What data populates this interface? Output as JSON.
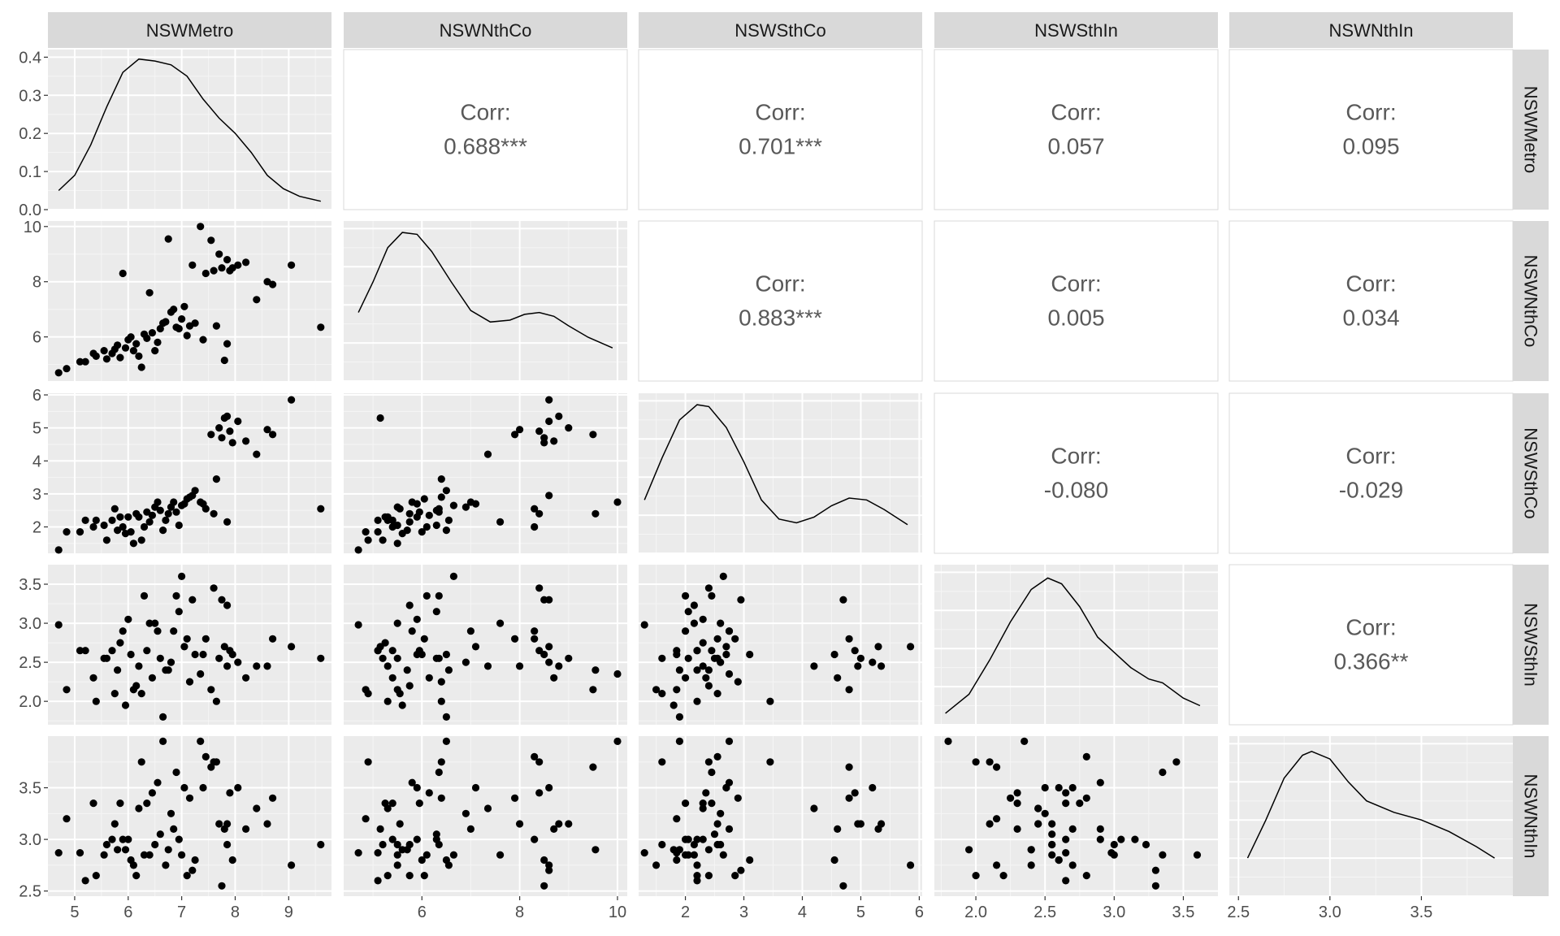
{
  "chart_data": {
    "type": "scatter",
    "title": "",
    "variables": [
      "NSWMetro",
      "NSWNthCo",
      "NSWSthCo",
      "NSWSthIn",
      "NSWNthIn"
    ],
    "axis_ranges": {
      "NSWMetro": [
        4.5,
        9.8
      ],
      "NSWNthCo": [
        4.4,
        10.2
      ],
      "NSWSthCo": [
        1.2,
        6.05
      ],
      "NSWSthIn": [
        1.7,
        3.75
      ],
      "NSWNthIn": [
        2.45,
        4.0
      ]
    },
    "x_ticks": {
      "NSWMetro": [
        "5",
        "6",
        "7",
        "8",
        "9"
      ],
      "NSWNthCo": [
        "6",
        "8",
        "10"
      ],
      "NSWSthCo": [
        "2",
        "3",
        "4",
        "5",
        "6"
      ],
      "NSWSthIn": [
        "2.0",
        "2.5",
        "3.0",
        "3.5"
      ],
      "NSWNthIn": [
        "2.5",
        "3.0",
        "3.5"
      ]
    },
    "y_ticks": {
      "NSWMetro": [
        "0.0",
        "0.1",
        "0.2",
        "0.3",
        "0.4"
      ],
      "NSWNthCo": [
        "6",
        "8",
        "10"
      ],
      "NSWSthCo": [
        "2",
        "3",
        "4",
        "5",
        "6"
      ],
      "NSWSthIn": [
        "2.0",
        "2.5",
        "3.0",
        "3.5"
      ],
      "NSWNthIn": [
        "2.5",
        "3.0",
        "3.5"
      ]
    },
    "density_ymax": 0.42,
    "correlations": [
      {
        "row": "NSWMetro",
        "col": "NSWNthCo",
        "label": "Corr:",
        "value": "0.688***"
      },
      {
        "row": "NSWMetro",
        "col": "NSWSthCo",
        "label": "Corr:",
        "value": "0.701***"
      },
      {
        "row": "NSWMetro",
        "col": "NSWSthIn",
        "label": "Corr:",
        "value": "0.057"
      },
      {
        "row": "NSWMetro",
        "col": "NSWNthIn",
        "label": "Corr:",
        "value": "0.095"
      },
      {
        "row": "NSWNthCo",
        "col": "NSWSthCo",
        "label": "Corr:",
        "value": "0.883***"
      },
      {
        "row": "NSWNthCo",
        "col": "NSWSthIn",
        "label": "Corr:",
        "value": "0.005"
      },
      {
        "row": "NSWNthCo",
        "col": "NSWNthIn",
        "label": "Corr:",
        "value": "0.034"
      },
      {
        "row": "NSWSthCo",
        "col": "NSWSthIn",
        "label": "Corr:",
        "value": "-0.080"
      },
      {
        "row": "NSWSthCo",
        "col": "NSWNthIn",
        "label": "Corr:",
        "value": "-0.029"
      },
      {
        "row": "NSWSthIn",
        "col": "NSWNthIn",
        "label": "Corr:",
        "value": "0.366**"
      }
    ],
    "densities": {
      "NSWMetro": [
        [
          4.7,
          0.05
        ],
        [
          5.0,
          0.09
        ],
        [
          5.3,
          0.17
        ],
        [
          5.6,
          0.27
        ],
        [
          5.9,
          0.36
        ],
        [
          6.2,
          0.395
        ],
        [
          6.5,
          0.39
        ],
        [
          6.8,
          0.38
        ],
        [
          7.1,
          0.35
        ],
        [
          7.4,
          0.29
        ],
        [
          7.7,
          0.24
        ],
        [
          8.0,
          0.2
        ],
        [
          8.3,
          0.15
        ],
        [
          8.6,
          0.09
        ],
        [
          8.9,
          0.055
        ],
        [
          9.2,
          0.035
        ],
        [
          9.6,
          0.022
        ]
      ],
      "NSWNthCo": [
        [
          4.7,
          0.18
        ],
        [
          5.0,
          0.26
        ],
        [
          5.3,
          0.35
        ],
        [
          5.6,
          0.39
        ],
        [
          5.9,
          0.385
        ],
        [
          6.2,
          0.34
        ],
        [
          6.6,
          0.26
        ],
        [
          7.0,
          0.185
        ],
        [
          7.4,
          0.155
        ],
        [
          7.8,
          0.16
        ],
        [
          8.1,
          0.175
        ],
        [
          8.4,
          0.18
        ],
        [
          8.7,
          0.17
        ],
        [
          9.0,
          0.145
        ],
        [
          9.4,
          0.115
        ],
        [
          9.9,
          0.087
        ]
      ],
      "NSWSthCo": [
        [
          1.3,
          0.14
        ],
        [
          1.6,
          0.25
        ],
        [
          1.9,
          0.35
        ],
        [
          2.2,
          0.39
        ],
        [
          2.4,
          0.385
        ],
        [
          2.7,
          0.33
        ],
        [
          3.0,
          0.24
        ],
        [
          3.3,
          0.14
        ],
        [
          3.6,
          0.09
        ],
        [
          3.9,
          0.08
        ],
        [
          4.2,
          0.095
        ],
        [
          4.5,
          0.125
        ],
        [
          4.8,
          0.145
        ],
        [
          5.1,
          0.14
        ],
        [
          5.4,
          0.115
        ],
        [
          5.8,
          0.075
        ]
      ],
      "NSWSthIn": [
        [
          1.78,
          0.03
        ],
        [
          1.95,
          0.08
        ],
        [
          2.1,
          0.17
        ],
        [
          2.25,
          0.27
        ],
        [
          2.4,
          0.355
        ],
        [
          2.52,
          0.385
        ],
        [
          2.62,
          0.37
        ],
        [
          2.75,
          0.31
        ],
        [
          2.88,
          0.23
        ],
        [
          3.0,
          0.19
        ],
        [
          3.12,
          0.15
        ],
        [
          3.25,
          0.12
        ],
        [
          3.35,
          0.11
        ],
        [
          3.5,
          0.07
        ],
        [
          3.62,
          0.05
        ]
      ],
      "NSWNthIn": [
        [
          2.55,
          0.1
        ],
        [
          2.65,
          0.2
        ],
        [
          2.75,
          0.31
        ],
        [
          2.85,
          0.37
        ],
        [
          2.9,
          0.38
        ],
        [
          3.0,
          0.36
        ],
        [
          3.1,
          0.3
        ],
        [
          3.2,
          0.25
        ],
        [
          3.35,
          0.22
        ],
        [
          3.5,
          0.2
        ],
        [
          3.65,
          0.17
        ],
        [
          3.8,
          0.13
        ],
        [
          3.9,
          0.1
        ]
      ]
    },
    "points": {
      "NSWMetro": [
        4.7,
        4.85,
        5.1,
        5.35,
        5.4,
        5.55,
        5.6,
        5.7,
        5.75,
        5.8,
        5.85,
        5.95,
        6.0,
        6.05,
        6.1,
        6.15,
        6.2,
        6.3,
        6.35,
        6.45,
        6.5,
        6.55,
        6.6,
        6.65,
        6.7,
        6.8,
        6.85,
        6.9,
        6.95,
        7.0,
        7.05,
        7.1,
        7.15,
        7.2,
        7.25,
        7.35,
        7.45,
        7.55,
        7.6,
        7.65,
        7.7,
        7.75,
        7.8,
        7.85,
        7.9,
        7.95,
        8.05,
        8.2,
        8.4,
        8.6,
        8.7,
        9.05,
        9.6,
        5.2,
        5.9,
        6.4,
        6.75,
        7.4,
        7.85,
        6.25
      ],
      "NSWNthCo": [
        4.7,
        4.85,
        5.1,
        5.4,
        5.3,
        5.5,
        5.2,
        5.4,
        5.55,
        5.7,
        5.25,
        5.6,
        5.9,
        6.0,
        5.5,
        5.75,
        5.3,
        6.1,
        5.95,
        6.15,
        5.5,
        5.8,
        6.3,
        6.5,
        6.55,
        6.9,
        7.0,
        6.35,
        6.3,
        6.65,
        7.1,
        6.05,
        6.4,
        8.6,
        6.5,
        10.0,
        8.3,
        9.5,
        8.4,
        6.4,
        9.0,
        8.5,
        5.15,
        8.8,
        8.4,
        8.5,
        8.6,
        8.7,
        7.35,
        8.0,
        7.9,
        8.6,
        6.35,
        5.1,
        8.3,
        7.6,
        9.55,
        5.9,
        5.75,
        4.9
      ],
      "NSWSthCo": [
        1.3,
        1.85,
        1.85,
        2.0,
        2.2,
        2.05,
        1.6,
        2.2,
        2.55,
        1.9,
        2.3,
        1.8,
        2.3,
        1.85,
        1.5,
        2.4,
        2.3,
        2.0,
        2.45,
        2.35,
        2.6,
        2.75,
        2.5,
        1.9,
        2.2,
        2.6,
        2.75,
        2.45,
        2.05,
        2.65,
        2.7,
        2.85,
        2.9,
        2.95,
        3.1,
        2.75,
        2.55,
        4.8,
        2.4,
        3.45,
        5.0,
        4.7,
        5.3,
        5.35,
        4.9,
        4.55,
        5.2,
        4.6,
        4.2,
        4.95,
        4.8,
        5.85,
        2.55,
        2.2,
        2.0,
        2.15,
        2.4,
        2.7,
        2.15,
        1.6
      ],
      "NSWSthIn": [
        2.98,
        2.15,
        2.65,
        2.3,
        2.0,
        2.55,
        2.55,
        2.65,
        2.1,
        2.4,
        2.75,
        1.95,
        3.05,
        2.6,
        2.15,
        2.2,
        2.45,
        3.35,
        2.65,
        2.3,
        3.0,
        2.9,
        2.55,
        1.8,
        2.4,
        2.5,
        2.9,
        3.35,
        3.15,
        3.6,
        2.7,
        2.8,
        2.25,
        3.3,
        2.6,
        2.35,
        2.8,
        2.15,
        3.45,
        2.0,
        2.55,
        3.3,
        2.7,
        2.45,
        2.65,
        2.6,
        2.5,
        2.3,
        2.45,
        2.45,
        2.8,
        2.7,
        2.55,
        2.65,
        2.9,
        3.0,
        2.4,
        2.6,
        3.23,
        2.1
      ],
      "NSWNthIn": [
        2.87,
        3.2,
        2.87,
        3.35,
        2.65,
        2.85,
        2.95,
        3.0,
        3.15,
        2.9,
        3.35,
        2.9,
        3.0,
        2.8,
        2.75,
        2.65,
        3.3,
        2.85,
        3.35,
        3.45,
        2.95,
        3.55,
        3.05,
        3.95,
        2.75,
        3.25,
        3.1,
        3.65,
        3.0,
        2.85,
        3.5,
        2.65,
        3.4,
        2.7,
        2.8,
        3.95,
        3.8,
        3.7,
        3.75,
        3.75,
        3.15,
        2.55,
        3.1,
        3.15,
        3.45,
        2.8,
        3.5,
        3.1,
        3.3,
        3.15,
        3.4,
        2.75,
        2.95,
        2.6,
        3.0,
        2.85,
        2.9,
        3.5,
        2.95,
        3.75
      ]
    }
  }
}
